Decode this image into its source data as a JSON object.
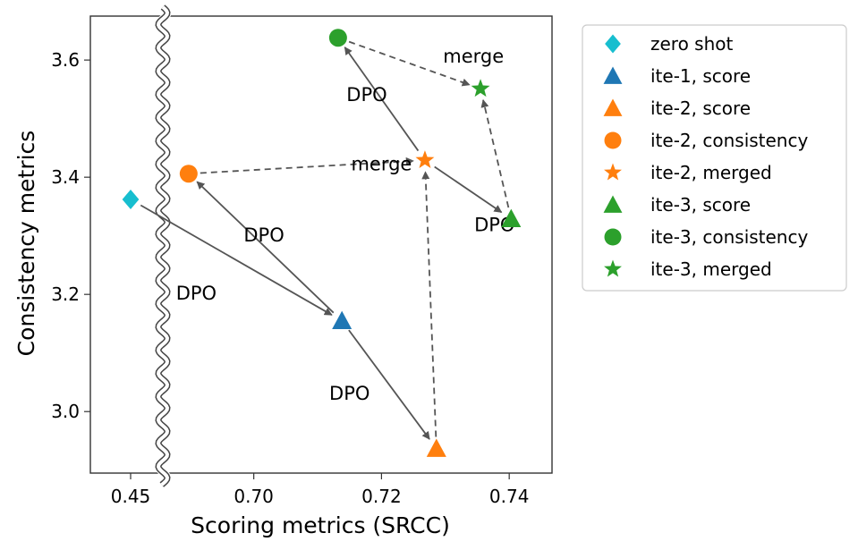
{
  "chart_data": {
    "type": "scatter",
    "xlabel": "Scoring metrics (SRCC)",
    "ylabel": "Consistency metrics",
    "xlim_main": [
      0.6866,
      0.7467
    ],
    "ylim": [
      2.895,
      3.675
    ],
    "x_break": {
      "left_value": 0.45,
      "left_label": "0.45"
    },
    "xticks": [
      {
        "value": 0.7,
        "label": "0.70"
      },
      {
        "value": 0.72,
        "label": "0.72"
      },
      {
        "value": 0.74,
        "label": "0.74"
      }
    ],
    "yticks": [
      {
        "value": 3.0,
        "label": "3.0"
      },
      {
        "value": 3.2,
        "label": "3.2"
      },
      {
        "value": 3.4,
        "label": "3.4"
      },
      {
        "value": 3.6,
        "label": "3.6"
      }
    ],
    "colors": {
      "cyan": "#17becf",
      "blue": "#1f77b4",
      "orange": "#ff7f0e",
      "green": "#2ca02c",
      "arrow": "#555555",
      "axis": "#333333"
    },
    "points": [
      {
        "id": "zero",
        "label": "zero shot",
        "x": 0.45,
        "y": 3.362,
        "marker": "diamond",
        "color": "#17becf"
      },
      {
        "id": "ite1s",
        "label": "ite-1, score",
        "x": 0.7138,
        "y": 3.155,
        "marker": "triangle",
        "color": "#1f77b4"
      },
      {
        "id": "ite2s",
        "label": "ite-2, score",
        "x": 0.7286,
        "y": 2.937,
        "marker": "triangle",
        "color": "#ff7f0e"
      },
      {
        "id": "ite2c",
        "label": "ite-2, consistency",
        "x": 0.6898,
        "y": 3.406,
        "marker": "circle",
        "color": "#ff7f0e"
      },
      {
        "id": "ite2m",
        "label": "ite-2, merged",
        "x": 0.7268,
        "y": 3.429,
        "marker": "star",
        "color": "#ff7f0e"
      },
      {
        "id": "ite3s",
        "label": "ite-3, score",
        "x": 0.7403,
        "y": 3.329,
        "marker": "triangle",
        "color": "#2ca02c"
      },
      {
        "id": "ite3c",
        "label": "ite-3, consistency",
        "x": 0.7132,
        "y": 3.638,
        "marker": "circle",
        "color": "#2ca02c"
      },
      {
        "id": "ite3m",
        "label": "ite-3, merged",
        "x": 0.7355,
        "y": 3.551,
        "marker": "star",
        "color": "#2ca02c"
      }
    ],
    "arrows": [
      {
        "from": "zero",
        "to": "ite1s",
        "style": "solid"
      },
      {
        "from": "ite1s",
        "to": "ite2c",
        "style": "solid"
      },
      {
        "from": "ite1s",
        "to": "ite2s",
        "style": "solid"
      },
      {
        "from": "ite2c",
        "to": "ite2m",
        "style": "dashed"
      },
      {
        "from": "ite2s",
        "to": "ite2m",
        "style": "dashed"
      },
      {
        "from": "ite2m",
        "to": "ite3c",
        "style": "solid"
      },
      {
        "from": "ite2m",
        "to": "ite3s",
        "style": "solid"
      },
      {
        "from": "ite3c",
        "to": "ite3m",
        "style": "dashed"
      },
      {
        "from": "ite3s",
        "to": "ite3m",
        "style": "dashed"
      }
    ],
    "annotations": [
      {
        "text": "DPO",
        "x": 0.691,
        "y": 3.191
      },
      {
        "text": "DPO",
        "x": 0.7016,
        "y": 3.29
      },
      {
        "text": "DPO",
        "x": 0.715,
        "y": 3.02
      },
      {
        "text": "DPO",
        "x": 0.7177,
        "y": 3.53
      },
      {
        "text": "merge",
        "x": 0.72,
        "y": 3.412
      },
      {
        "text": "merge",
        "x": 0.7344,
        "y": 3.596
      },
      {
        "text": "DPO",
        "x": 0.7377,
        "y": 3.308
      }
    ],
    "legend": {
      "position": "outside-right",
      "entries": [
        "zero shot",
        "ite-1, score",
        "ite-2, score",
        "ite-2, consistency",
        "ite-2, merged",
        "ite-3, score",
        "ite-3, consistency",
        "ite-3, merged"
      ]
    }
  }
}
